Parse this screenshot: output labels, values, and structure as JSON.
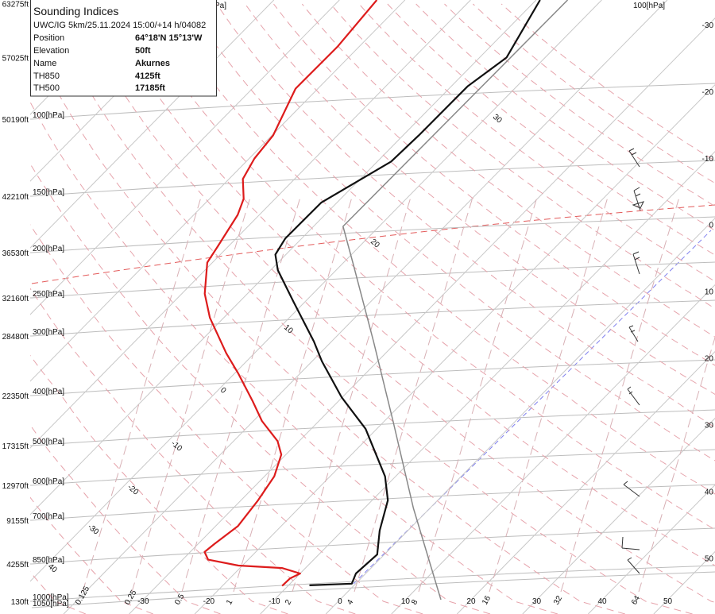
{
  "info": {
    "title": "Sounding Indices",
    "subtitle": "UWC/IG 5km/25.11.2024 15:00/+14 h/04082",
    "rows": [
      {
        "label": "Position",
        "value": "64°18'N 15°13'W"
      },
      {
        "label": "Elevation",
        "value": "50ft"
      },
      {
        "label": "Name",
        "value": "Akurnes"
      },
      {
        "label": "TH850",
        "value": "4125ft"
      },
      {
        "label": "TH500",
        "value": "17185ft"
      }
    ]
  },
  "chart_data": {
    "type": "skewt",
    "log_y": true,
    "ylim": [
      1050,
      53
    ],
    "xlim": [
      -47,
      57.2
    ],
    "yticks": [
      {
        "value": 1050,
        "label": "1050[hPa]"
      },
      {
        "value": 1000,
        "label": "1000[hPa]"
      },
      {
        "value": 850,
        "label": "850[hPa]"
      },
      {
        "value": 700,
        "label": "700[hPa]"
      },
      {
        "value": 600,
        "label": "600[hPa]"
      },
      {
        "value": 500,
        "label": "500[hPa]"
      },
      {
        "value": 400,
        "label": "400[hPa]"
      },
      {
        "value": 300,
        "label": "300[hPa]"
      },
      {
        "value": 250,
        "label": "250[hPa]"
      },
      {
        "value": 200,
        "label": "200[hPa]"
      },
      {
        "value": 150,
        "label": "150[hPa]"
      },
      {
        "value": 100,
        "label": "100[hPa]"
      }
    ],
    "height_ticks": [
      {
        "value": 54,
        "label": "63275ft"
      },
      {
        "value": 72,
        "label": "57025ft"
      },
      {
        "value": 100,
        "label": "50190ft"
      },
      {
        "value": 150,
        "label": "42210ft"
      },
      {
        "value": 200,
        "label": "36530ft"
      },
      {
        "value": 250,
        "label": "32160ft"
      },
      {
        "value": 300,
        "label": "28480ft"
      },
      {
        "value": 400,
        "label": "22350ft"
      },
      {
        "value": 500,
        "label": "17315ft"
      },
      {
        "value": 600,
        "label": "12970ft"
      },
      {
        "value": 700,
        "label": "9155ft"
      },
      {
        "value": 850,
        "label": "4255ft"
      },
      {
        "value": 1000,
        "label": "130ft"
      }
    ],
    "xticks": [
      -30,
      -20,
      -10,
      0,
      10,
      20,
      30,
      40,
      50
    ],
    "mixing_ratio_labels": [
      "0.125",
      "0.25",
      "0.5",
      "1",
      "2",
      "4",
      "8",
      "16",
      "32",
      "64"
    ],
    "adiabat_labels": [
      "40",
      "-30",
      "-20",
      "-10",
      "0",
      "10",
      "20",
      "30"
    ],
    "annotations": [
      "Pa]",
      "100[hPa]"
    ],
    "profiles": [
      {
        "color": "#111111",
        "pressure": [
          933,
          926,
          886,
          815,
          733,
          641,
          576,
          464,
          403,
          339,
          308,
          255,
          218,
          202,
          186,
          155,
          125,
          109,
          84,
          72,
          53
        ],
        "values": [
          -6.8,
          -0.6,
          -1.5,
          -1.1,
          -4.3,
          -7.6,
          -11.6,
          -21.7,
          -30.1,
          -38.5,
          -42.7,
          -51.7,
          -58.9,
          -61.6,
          -62.5,
          -62.4,
          -57.9,
          -57.6,
          -57.5,
          -55.9,
          -59.4
        ]
      },
      {
        "color": "#dd1c1c",
        "pressure": [
          935,
          905,
          886,
          865,
          856,
          834,
          806,
          778,
          718,
          641,
          576,
          521,
          490,
          448,
          410,
          359,
          326,
          275,
          245,
          210,
          194,
          165,
          152,
          137,
          123,
          109,
          85,
          68,
          53
        ],
        "values": [
          -10.9,
          -10.8,
          -10.0,
          -13.6,
          -20.6,
          -26.1,
          -27.8,
          -27.5,
          -26.6,
          -27.4,
          -28.5,
          -30.7,
          -33.3,
          -38.7,
          -43.1,
          -49.5,
          -54.3,
          -62.1,
          -66.5,
          -70.8,
          -71.6,
          -73.3,
          -74.8,
          -77.9,
          -79.2,
          -79.8,
          -83.4,
          -83.3,
          -84.3
        ]
      },
      {
        "color": "#888888",
        "pressure": [
          993,
          664,
          448,
          308,
          210,
          175,
          53
        ],
        "values": [
          15.4,
          -2.5,
          -18.7,
          -33.6,
          -48.6,
          -55.5,
          -55.2
        ]
      }
    ]
  }
}
